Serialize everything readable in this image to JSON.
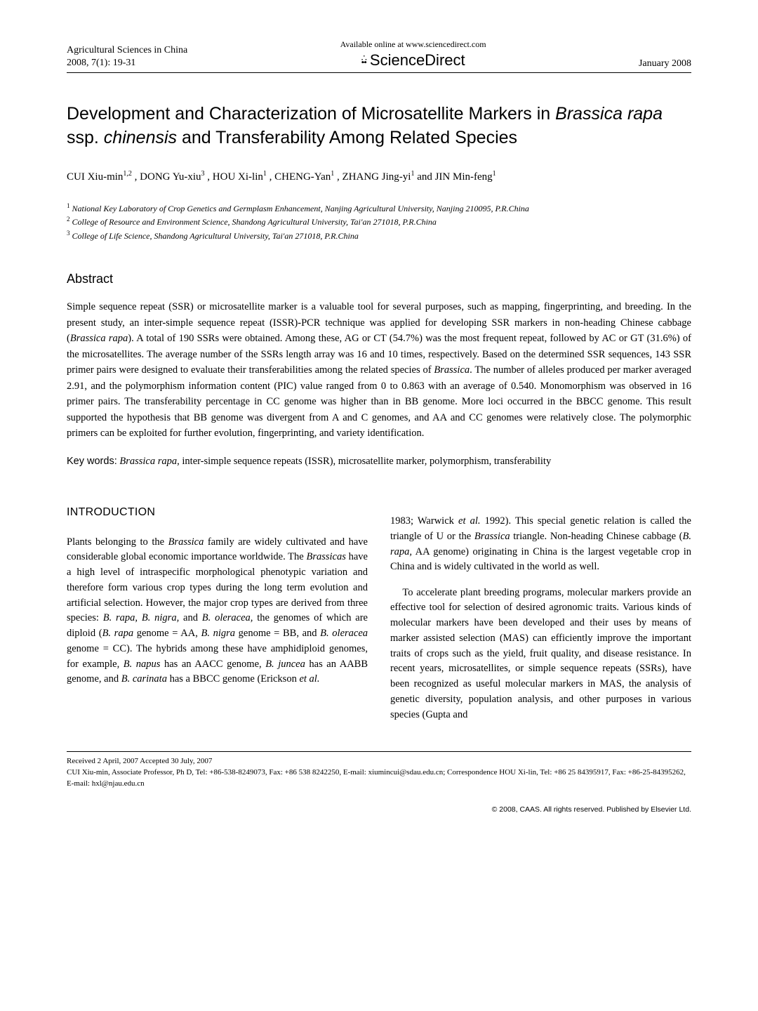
{
  "header": {
    "journal": "Agricultural Sciences in China",
    "issue": "2008, 7(1): 19-31",
    "available": "Available online at www.sciencedirect.com",
    "brand": "ScienceDirect",
    "date": "January 2008"
  },
  "title": {
    "line": "Development and Characterization of Microsatellite Markers in Brassica rapa ssp. chinensis and Transferability Among Related Species",
    "line1_plain": "Development and Characterization of Microsatellite Markers in ",
    "line1_italic": "Brassica rapa",
    "line2_plain1": "ssp. ",
    "line2_italic": "chinensis",
    "line2_plain2": " and Transferability Among Related Species"
  },
  "authors": "CUI Xiu-min1,2, DONG Yu-xiu3, HOU Xi-lin1, CHENG-Yan1, ZHANG Jing-yi1 and JIN Min-feng1",
  "author_parts": {
    "a1": "CUI Xiu-min",
    "s1": "1,2",
    "a2": ", DONG Yu-xiu",
    "s2": "3",
    "a3": ", HOU Xi-lin",
    "s3": "1",
    "a4": ", CHENG-Yan",
    "s4": "1",
    "a5": ", ZHANG Jing-yi",
    "s5": "1",
    "a6": " and JIN Min-feng",
    "s6": "1"
  },
  "affiliations": {
    "a1": "National Key Laboratory of Crop Genetics and Germplasm Enhancement, Nanjing Agricultural University, Nanjing 210095, P.R.China",
    "a2": "College of Resource and Environment Science, Shandong Agricultural University, Tai'an 271018, P.R.China",
    "a3": "College of Life Science, Shandong Agricultural University, Tai'an 271018, P.R.China"
  },
  "abstract": {
    "heading": "Abstract",
    "p1a": "Simple sequence repeat (SSR) or microsatellite marker is a valuable tool for several purposes, such as mapping, fingerprinting, and breeding. In the present study, an inter-simple sequence repeat (ISSR)-PCR technique was applied for developing SSR markers in non-heading Chinese cabbage (",
    "p1b_italic": "Brassica rapa",
    "p1c": "). A total of 190 SSRs were obtained. Among these, AG or CT (54.7%) was the most frequent repeat, followed by AC or GT (31.6%) of the microsatellites. The average number of the SSRs length array was 16 and 10 times, respectively. Based on the determined SSR sequences, 143 SSR primer pairs were designed to evaluate their transferabilities among the related species of ",
    "p1d_italic": "Brassica",
    "p1e": ". The number of alleles produced per marker averaged 2.91, and the polymorphism information content (PIC) value ranged from 0 to 0.863 with an average of 0.540. Monomorphism was observed in 16 primer pairs. The transferability percentage in CC genome was higher than in BB genome. More loci occurred in the BBCC genome. This result supported the hypothesis that BB genome was divergent from A and C genomes, and AA and CC genomes were relatively close. The polymorphic primers can be exploited for further evolution, fingerprinting, and variety identification."
  },
  "keywords": {
    "label": "Key words:",
    "k1_italic": "Brassica rapa",
    "rest": ", inter-simple sequence repeats (ISSR), microsatellite marker, polymorphism, transferability"
  },
  "intro": {
    "heading": "INTRODUCTION",
    "col1": {
      "p1a": "Plants belonging to the ",
      "p1b_i": "Brassica",
      "p1c": " family are widely cultivated and have considerable global economic importance worldwide. The ",
      "p1d_i": "Brassicas",
      "p1e": " have a high level of intraspecific morphological phenotypic variation and therefore form various crop types during the long term evolution and artificial selection. However, the major crop types are derived from three species: ",
      "p1f_i": "B. rapa, B. nigra,",
      "p1g": " and ",
      "p1h_i": "B. oleracea,",
      "p1i": " the genomes of which are diploid (",
      "p1j_i": "B. rapa",
      "p1k": " genome = AA, ",
      "p1l_i": "B. nigra",
      "p1m": " genome = BB, and ",
      "p1n_i": "B. oleracea",
      "p1o": " genome = CC). The hybrids among these have amphidiploid genomes, for example, ",
      "p1p_i": "B. napus",
      "p1q": " has an AACC genome, ",
      "p1r_i": "B. juncea",
      "p1s": " has an AABB genome, and ",
      "p1t_i": "B. carinata",
      "p1u": " has a BBCC genome (Erickson ",
      "p1v_i": "et al.",
      "p1w": ""
    },
    "col2": {
      "p1a": "1983; Warwick ",
      "p1b_i": "et al.",
      "p1c": " 1992). This special genetic relation is called the triangle of U or the ",
      "p1d_i": "Brassica",
      "p1e": " triangle. Non-heading Chinese cabbage (",
      "p1f_i": "B. rapa,",
      "p1g": " AA genome) originating in China is the largest vegetable crop in China and is widely cultivated in the world as well.",
      "p2": "To accelerate plant breeding programs, molecular markers provide an effective tool for selection of desired agronomic traits. Various kinds of molecular markers have been developed and their uses by means of marker assisted selection (MAS) can efficiently improve the important traits of crops such as the yield, fruit quality, and disease resistance. In recent years, microsatellites, or simple sequence repeats (SSRs), have been recognized as useful molecular markers in MAS, the analysis of genetic diversity, population analysis, and other purposes in various species (Gupta and"
    }
  },
  "footer": {
    "received": "Received 2 April, 2007   Accepted 30 July, 2007",
    "corr": "CUI Xiu-min, Associate Professor, Ph D, Tel: +86-538-8249073, Fax: +86 538 8242250, E-mail: xiumincui@sdau.edu.cn; Correspondence HOU Xi-lin, Tel: +86 25 84395917, Fax: +86-25-84395262, E-mail: hxl@njau.edu.cn"
  },
  "copyright": "© 2008, CAAS. All rights reserved. Published by Elsevier Ltd."
}
